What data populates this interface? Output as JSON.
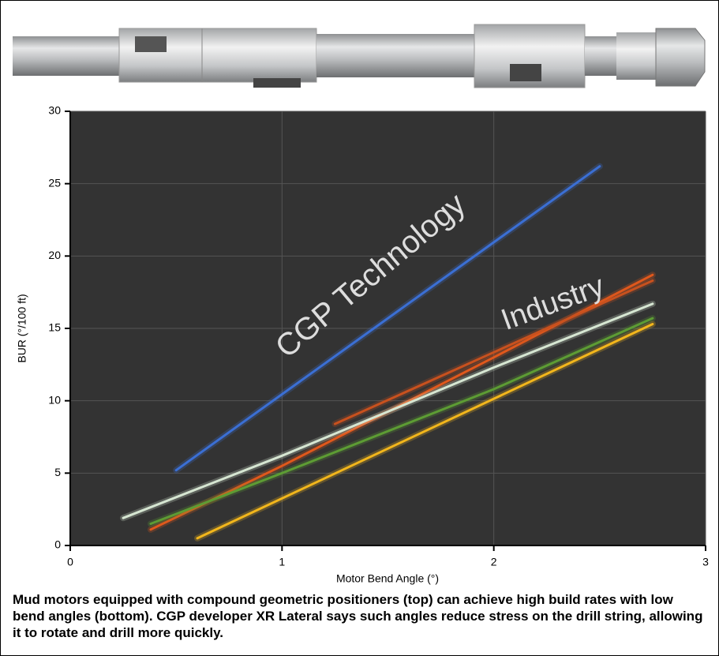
{
  "chart_data": {
    "type": "line",
    "xlabel": "Motor Bend Angle (°)",
    "ylabel": "BUR (°/100 ft)",
    "xlim": [
      0,
      3
    ],
    "xticks": [
      0,
      1,
      2,
      3
    ],
    "ylim": [
      0,
      30
    ],
    "yticks": [
      0,
      5,
      10,
      15,
      20,
      25,
      30
    ],
    "grid": true,
    "series": [
      {
        "color": "#3b6fd4",
        "x": [
          0.5,
          2.5
        ],
        "values": [
          5.2,
          26.2
        ]
      },
      {
        "color": "#e0581c",
        "x": [
          0.38,
          1.0,
          2.0,
          2.75
        ],
        "values": [
          1.1,
          5.5,
          13.0,
          18.7
        ]
      },
      {
        "color": "#c8511e",
        "x": [
          1.25,
          2.75
        ],
        "values": [
          8.4,
          18.3
        ]
      },
      {
        "color": "#5d9c34",
        "x": [
          0.38,
          1.0,
          2.0,
          2.75
        ],
        "values": [
          1.5,
          5.0,
          10.8,
          15.7
        ]
      },
      {
        "color": "#d6e6d2",
        "x": [
          0.25,
          1.0,
          2.0,
          2.75
        ],
        "values": [
          1.9,
          6.2,
          12.3,
          16.7
        ]
      },
      {
        "color": "#f2b61c",
        "x": [
          0.6,
          2.75
        ],
        "values": [
          0.5,
          15.3
        ]
      }
    ],
    "annotations": [
      "CGP Technology",
      "Industry"
    ]
  },
  "caption": "Mud motors equipped with compound geometric positioners (top) can achieve high build rates with low bend angles (bottom). CGP developer XR Lateral says such angles reduce stress on the drill string, allowing it to rotate and drill more quickly."
}
